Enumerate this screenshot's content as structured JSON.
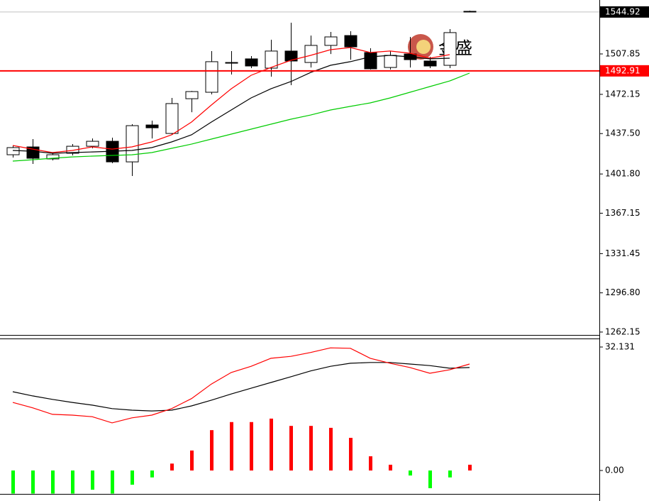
{
  "chart_data": [
    {
      "type": "candlestick",
      "ylim": [
        1259.6,
        1555.5
      ],
      "yticks": [
        1507.85,
        1472.15,
        {
          "value": 1437.5,
          "label": "1437.50"
        },
        {
          "value": 1401.8,
          "label": "1401.80"
        },
        1367.15,
        1331.45,
        {
          "value": 1296.8,
          "label": "1296.80"
        },
        1262.15
      ],
      "open": [
        1418.8,
        1425.7,
        1415.1,
        1420.1,
        1426.3,
        1430.7,
        1412.5,
        1445.1,
        1437.6,
        1468.3,
        1474.0,
        1499.7,
        1503.5,
        1495.3,
        1510.4,
        1500.3,
        1515.4,
        1524.1,
        1509.1,
        1495.9,
        1507.8,
        1501.6,
        1497.8,
        1545.5
      ],
      "high": [
        1427.0,
        1432.6,
        1420.7,
        1428.2,
        1433.2,
        1433.9,
        1445.8,
        1448.9,
        1469.0,
        1475.2,
        1510.4,
        1510.4,
        1506.0,
        1520.4,
        1535.4,
        1524.1,
        1527.3,
        1527.9,
        1512.9,
        1510.4,
        1522.9,
        1505.3,
        1529.8,
        1546.1
      ],
      "low": [
        1416.3,
        1410.7,
        1413.8,
        1418.2,
        1424.5,
        1411.3,
        1400.0,
        1433.2,
        1436.4,
        1456.4,
        1472.1,
        1489.7,
        1495.3,
        1487.8,
        1480.3,
        1495.9,
        1507.8,
        1502.8,
        1494.1,
        1494.1,
        1495.9,
        1495.3,
        1495.3,
        1544.9
      ],
      "close": [
        1425.1,
        1415.7,
        1418.8,
        1426.3,
        1430.7,
        1412.5,
        1444.5,
        1442.6,
        1464.0,
        1474.6,
        1501.0,
        1500.3,
        1497.2,
        1510.4,
        1501.6,
        1515.4,
        1522.9,
        1514.1,
        1494.7,
        1506.6,
        1502.8,
        1497.2,
        1526.7,
        1544.92
      ],
      "up_color": "#ffffff",
      "down_color": "#000000",
      "lines": [
        {
          "color": "#ff0000",
          "values": [
            1427.0,
            1423.8,
            1420.7,
            1422.6,
            1425.7,
            1423.8,
            1425.7,
            1430.1,
            1436.4,
            1447.7,
            1462.7,
            1477.1,
            1489.0,
            1495.9,
            1502.2,
            1506.6,
            1511.6,
            1513.5,
            1509.1,
            1510.4,
            1508.5,
            1504.1,
            1507.2,
            null
          ]
        },
        {
          "color": "#000000",
          "values": [
            1422.6,
            1421.9,
            1420.1,
            1420.7,
            1421.3,
            1421.9,
            1422.6,
            1425.1,
            1430.1,
            1436.4,
            1447.7,
            1458.3,
            1469.0,
            1477.1,
            1483.4,
            1491.5,
            1497.8,
            1501.0,
            1505.3,
            1506.6,
            1505.3,
            1503.5,
            1504.1,
            null
          ]
        },
        {
          "color": "#00cc00",
          "values": [
            1413.2,
            1414.4,
            1415.7,
            1416.9,
            1417.6,
            1418.2,
            1418.8,
            1420.7,
            1424.5,
            1428.2,
            1432.6,
            1437.0,
            1441.4,
            1445.8,
            1450.2,
            1453.9,
            1458.3,
            1461.5,
            1464.6,
            1469.0,
            1474.0,
            1479.0,
            1484.0,
            1490.9
          ]
        }
      ],
      "level_line": {
        "value": 1492.91,
        "color": "#ff0000"
      },
      "price_line": {
        "value": 1544.92,
        "color": "#c0c0c0"
      },
      "watermark": "金盛"
    },
    {
      "type": "macd",
      "ylim": [
        -6.09,
        34.16
      ],
      "yticks": [
        32.131,
        {
          "value": 0,
          "label": "0.00"
        }
      ],
      "values": [
        -6.0,
        -6.0,
        -6.0,
        -6.0,
        -5.0,
        -6.0,
        -3.7,
        -1.8,
        1.8,
        5.2,
        10.5,
        12.6,
        12.6,
        13.5,
        11.6,
        11.6,
        11.1,
        8.5,
        3.7,
        1.5,
        -1.3,
        -4.6,
        -1.8,
        1.5
      ],
      "up_color": "#ff0000",
      "down_color": "#00ff00",
      "lines": [
        {
          "color": "#000000",
          "values": [
            20.5,
            19.4,
            18.5,
            17.7,
            17.0,
            16.1,
            15.7,
            15.5,
            15.7,
            16.8,
            18.3,
            19.9,
            21.4,
            22.9,
            24.4,
            25.9,
            27.1,
            27.9,
            28.1,
            28.1,
            27.7,
            27.3,
            26.6,
            26.8
          ]
        },
        {
          "color": "#ff0000",
          "values": [
            17.7,
            16.3,
            14.6,
            14.4,
            14.0,
            12.4,
            13.7,
            14.4,
            16.1,
            18.7,
            22.5,
            25.5,
            27.1,
            29.2,
            29.7,
            30.7,
            31.9,
            31.8,
            29.2,
            27.9,
            26.8,
            25.3,
            26.2,
            27.7
          ]
        }
      ]
    }
  ]
}
